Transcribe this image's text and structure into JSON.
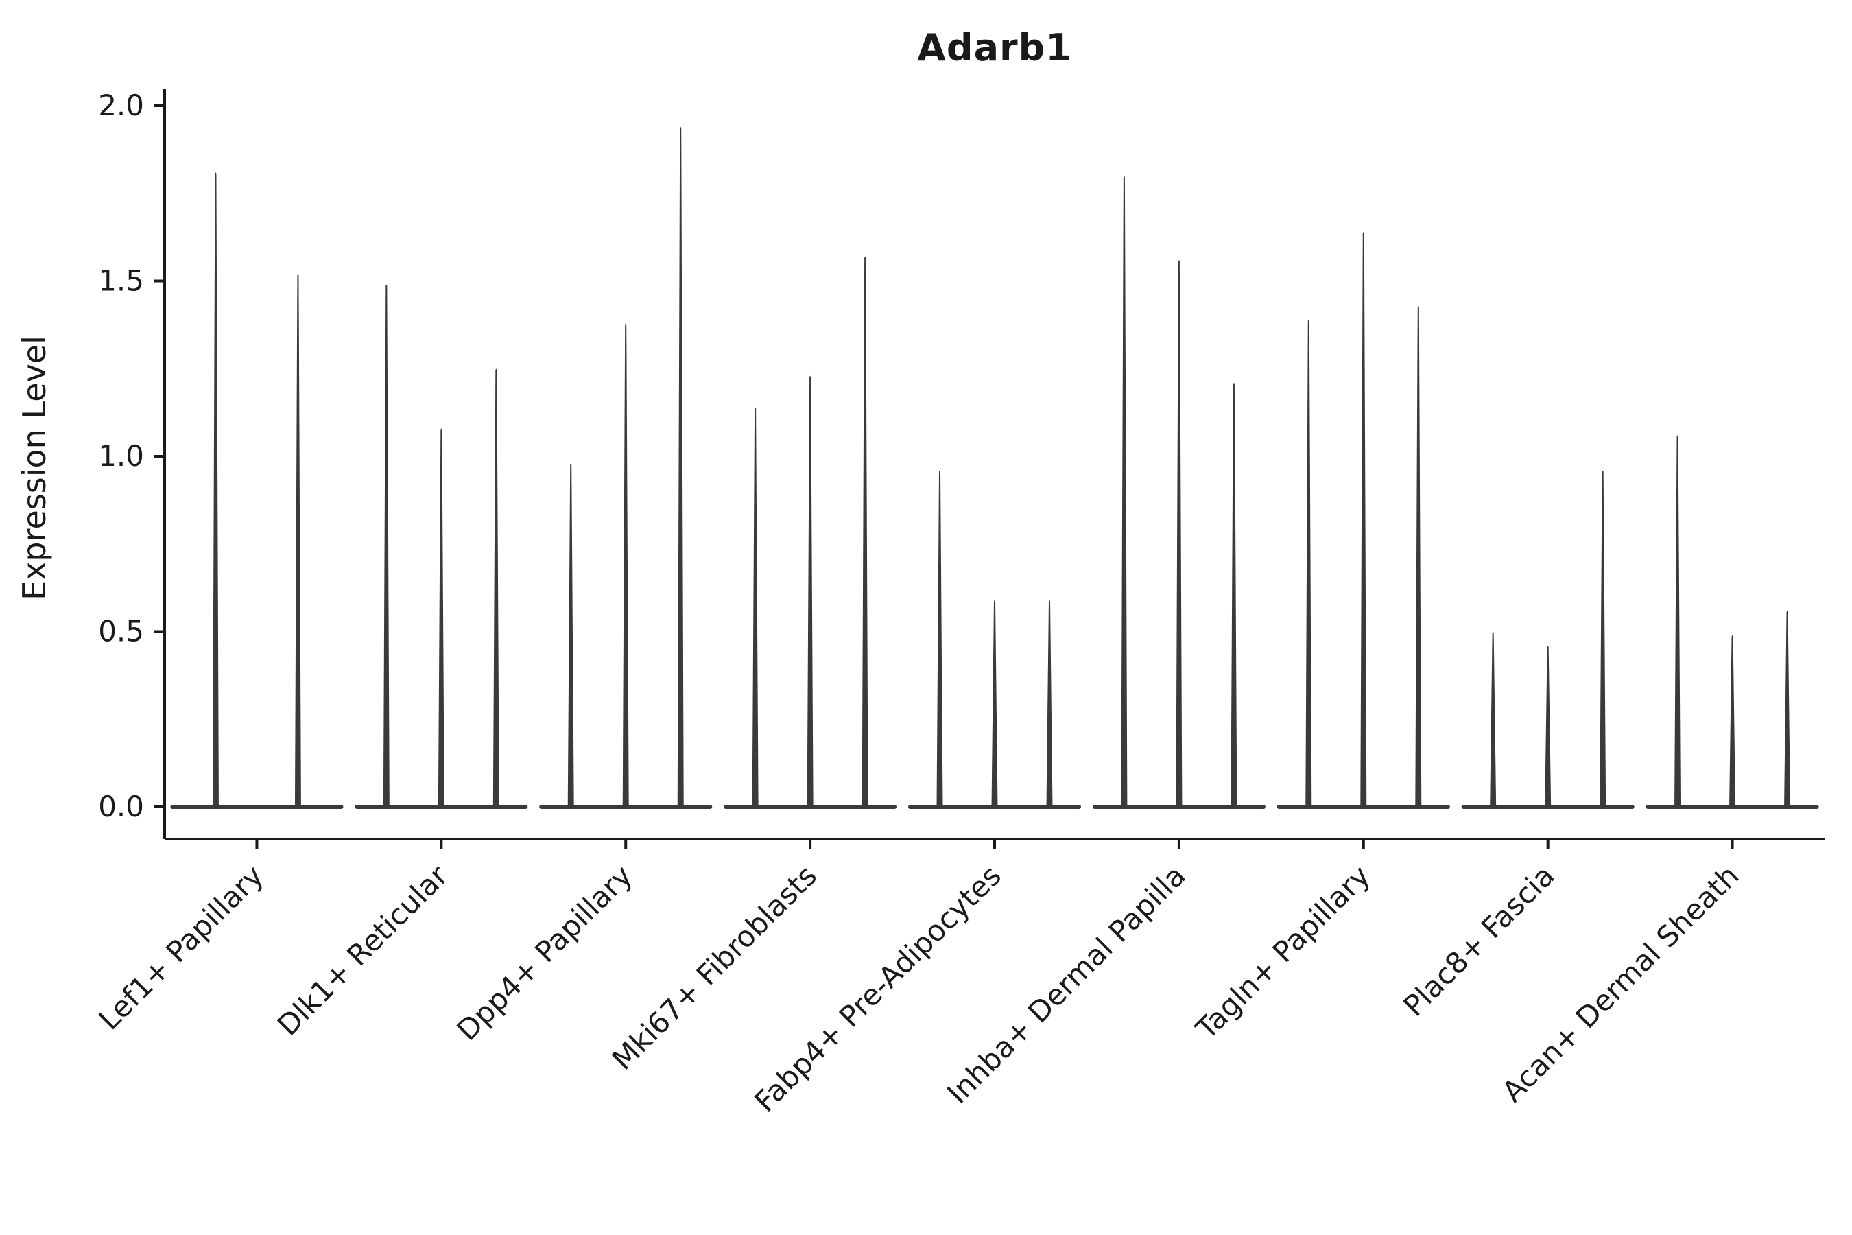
{
  "chart_data": {
    "type": "violin",
    "title": "Adarb1",
    "ylabel": "Expression Level",
    "xlabel": "",
    "ylim": [
      0,
      2.0
    ],
    "yticks": [
      0,
      0.5,
      1.0,
      1.5,
      2.0
    ],
    "ytick_labels": [
      "0.0",
      "0.5",
      "1.0",
      "1.5",
      "2.0"
    ],
    "grid": false,
    "legend": "none",
    "categories": [
      "Lef1+ Papillary",
      "Dlk1+ Reticular",
      "Dpp4+ Papillary",
      "Mki67+ Fibroblasts",
      "Fabp4+ Pre-Adipocytes",
      "Inhba+ Dermal Papilla",
      "Tagln+ Papillary",
      "Plac8+ Fascia",
      "Acan+ Dermal Sheath"
    ],
    "violin_max_values": [
      [
        1.81,
        1.52
      ],
      [
        1.49,
        1.08,
        1.25
      ],
      [
        0.98,
        1.38,
        1.94
      ],
      [
        1.14,
        1.23,
        1.57
      ],
      [
        0.96,
        0.59,
        0.59
      ],
      [
        1.8,
        1.56,
        1.21
      ],
      [
        1.39,
        1.64,
        1.43
      ],
      [
        0.5,
        0.46,
        0.96
      ],
      [
        1.06,
        0.49,
        0.56
      ]
    ],
    "violin_shape_note": "needle-like violins: flat mass at 0 with a thin spike up to the max value",
    "colors": {
      "violin": "#3a3a3a",
      "axis": "#1a1a1a",
      "text": "#1a1a1a",
      "background": "#ffffff"
    }
  }
}
